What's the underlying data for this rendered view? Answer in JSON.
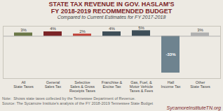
{
  "chart_data": {
    "type": "bar",
    "title": "STATE TAX REVENUE IN GOV. HASLAM'S\nFY 2018-2019 RECOMMENDED BUDGET",
    "subtitle": "Compared to Current Estimates for FY 2017-2018",
    "categories": [
      "All\nState Taxes",
      "General\nSales Tax",
      "Selective\nSales & Gross\nReceipts Taxes",
      "Franchise &\nExcise Tax",
      "Gas, Fuel, &\nMotor Vehicle\nTaxes & Fees",
      "Hall\nIncome Tax",
      "Other\nState Taxes"
    ],
    "values": [
      3,
      4,
      2,
      4,
      5,
      -33,
      3
    ],
    "value_labels": [
      "3%",
      "4%",
      "2%",
      "4%",
      "5%",
      "-33%",
      "3%"
    ],
    "colors": [
      "#6b7848",
      "#7b2427",
      "#c0433a",
      "#3e4e58",
      "#3e4e58",
      "#6e838f",
      "#b0b0b0"
    ],
    "ylim": [
      -38,
      9
    ],
    "data_labels": true,
    "tick_labels": "x",
    "grid": false,
    "annotations": [
      "Note:  Shows state taxes collected by the Tennessee Department of Revenue.\nSource: The Sycamore Institute's analysis of the FY 2018-2019 Tennessee State Budget",
      "SycamoreInstituteTN.org"
    ]
  }
}
